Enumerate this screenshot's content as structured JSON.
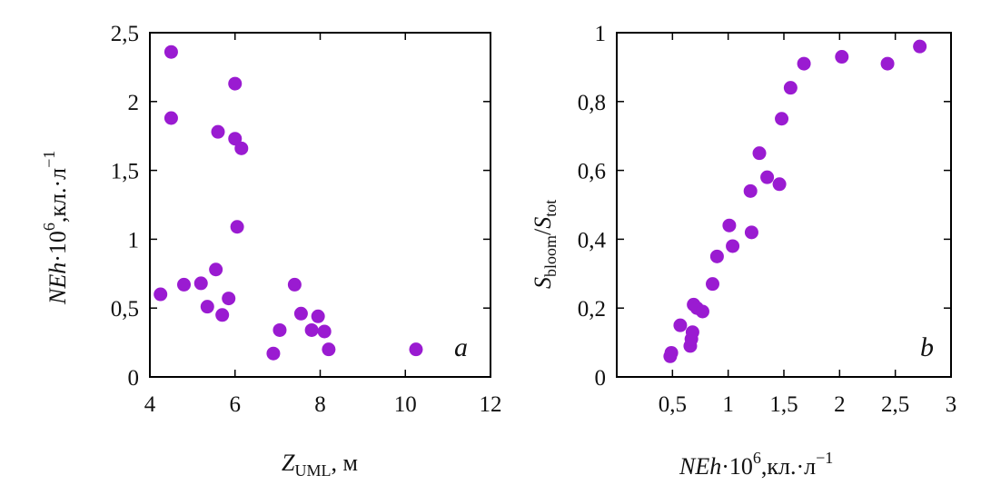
{
  "colors": {
    "point": "#9a1bd1",
    "axis": "#000000",
    "background": "#ffffff"
  },
  "chart_data": [
    {
      "type": "scatter",
      "panel_label": "a",
      "xlabel": {
        "main": "Z",
        "sub": "UML",
        "suffix": ", м"
      },
      "ylabel": {
        "prefix": "NEh",
        "mid": "·10",
        "sup": "6",
        "suffix": ",кл.·л",
        "sup2": "−1"
      },
      "xlim": [
        4,
        12
      ],
      "ylim": [
        0,
        2.5
      ],
      "xticks": [
        4,
        6,
        8,
        10,
        12
      ],
      "xtick_labels": [
        "4",
        "6",
        "8",
        "10",
        "12"
      ],
      "yticks": [
        0,
        0.5,
        1,
        1.5,
        2,
        2.5
      ],
      "ytick_labels": [
        "0",
        "0,5",
        "1",
        "1,5",
        "2",
        "2,5"
      ],
      "points": [
        [
          4.5,
          2.36
        ],
        [
          4.5,
          1.88
        ],
        [
          4.25,
          0.6
        ],
        [
          4.8,
          0.67
        ],
        [
          5.2,
          0.68
        ],
        [
          5.35,
          0.51
        ],
        [
          5.55,
          0.78
        ],
        [
          5.6,
          1.78
        ],
        [
          5.7,
          0.45
        ],
        [
          5.85,
          0.57
        ],
        [
          6.0,
          2.13
        ],
        [
          6.0,
          1.73
        ],
        [
          6.05,
          1.09
        ],
        [
          6.15,
          1.66
        ],
        [
          6.9,
          0.17
        ],
        [
          7.05,
          0.34
        ],
        [
          7.4,
          0.67
        ],
        [
          7.55,
          0.46
        ],
        [
          7.8,
          0.34
        ],
        [
          7.95,
          0.44
        ],
        [
          8.1,
          0.33
        ],
        [
          8.2,
          0.2
        ],
        [
          10.25,
          0.2
        ]
      ]
    },
    {
      "type": "scatter",
      "panel_label": "b",
      "xlabel": {
        "prefix": "NEh",
        "mid": "·10",
        "sup": "6",
        "suffix": ",кл.·л",
        "sup2": "−1"
      },
      "ylabel": {
        "s1": "S",
        "sub1": "bloom",
        "slash": "/",
        "s2": "S",
        "sub2": "tot"
      },
      "xlim": [
        0,
        3
      ],
      "ylim": [
        0,
        1
      ],
      "xticks": [
        0.5,
        1,
        1.5,
        2,
        2.5,
        3
      ],
      "xtick_labels": [
        "0,5",
        "1",
        "1,5",
        "2",
        "2,5",
        "3"
      ],
      "yticks": [
        0,
        0.2,
        0.4,
        0.6,
        0.8,
        1
      ],
      "ytick_labels": [
        "0",
        "0,2",
        "0,4",
        "0,6",
        "0,8",
        "1"
      ],
      "points": [
        [
          0.48,
          0.06
        ],
        [
          0.49,
          0.07
        ],
        [
          0.57,
          0.15
        ],
        [
          0.66,
          0.09
        ],
        [
          0.67,
          0.11
        ],
        [
          0.68,
          0.13
        ],
        [
          0.69,
          0.21
        ],
        [
          0.72,
          0.2
        ],
        [
          0.77,
          0.19
        ],
        [
          0.86,
          0.27
        ],
        [
          0.9,
          0.35
        ],
        [
          1.01,
          0.44
        ],
        [
          1.04,
          0.38
        ],
        [
          1.2,
          0.54
        ],
        [
          1.21,
          0.42
        ],
        [
          1.28,
          0.65
        ],
        [
          1.35,
          0.58
        ],
        [
          1.46,
          0.56
        ],
        [
          1.48,
          0.75
        ],
        [
          1.56,
          0.84
        ],
        [
          1.68,
          0.91
        ],
        [
          2.02,
          0.93
        ],
        [
          2.43,
          0.91
        ],
        [
          2.72,
          0.96
        ]
      ]
    }
  ]
}
